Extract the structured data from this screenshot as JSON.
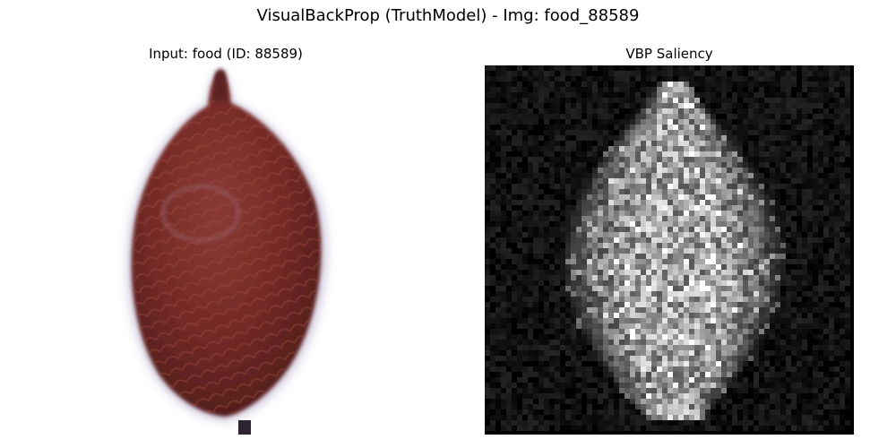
{
  "figure": {
    "title": "VisualBackProp (TruthModel) - Img: food_88589"
  },
  "panels": [
    {
      "title": "Input: food (ID: 88589)",
      "content": "photo of a reddish-brown teardrop-shaped fruit on a white background"
    },
    {
      "title": "VBP Saliency",
      "content": "grayscale saliency map, bright noisy speckles in the shape of the fruit on a black background",
      "colormap": "gray"
    }
  ],
  "colors": {
    "fruit": "#7a2e2a",
    "fruit_dark": "#4e1c1a",
    "fruit_edge": "#8e7fa6",
    "saliency_background": "#000000"
  }
}
